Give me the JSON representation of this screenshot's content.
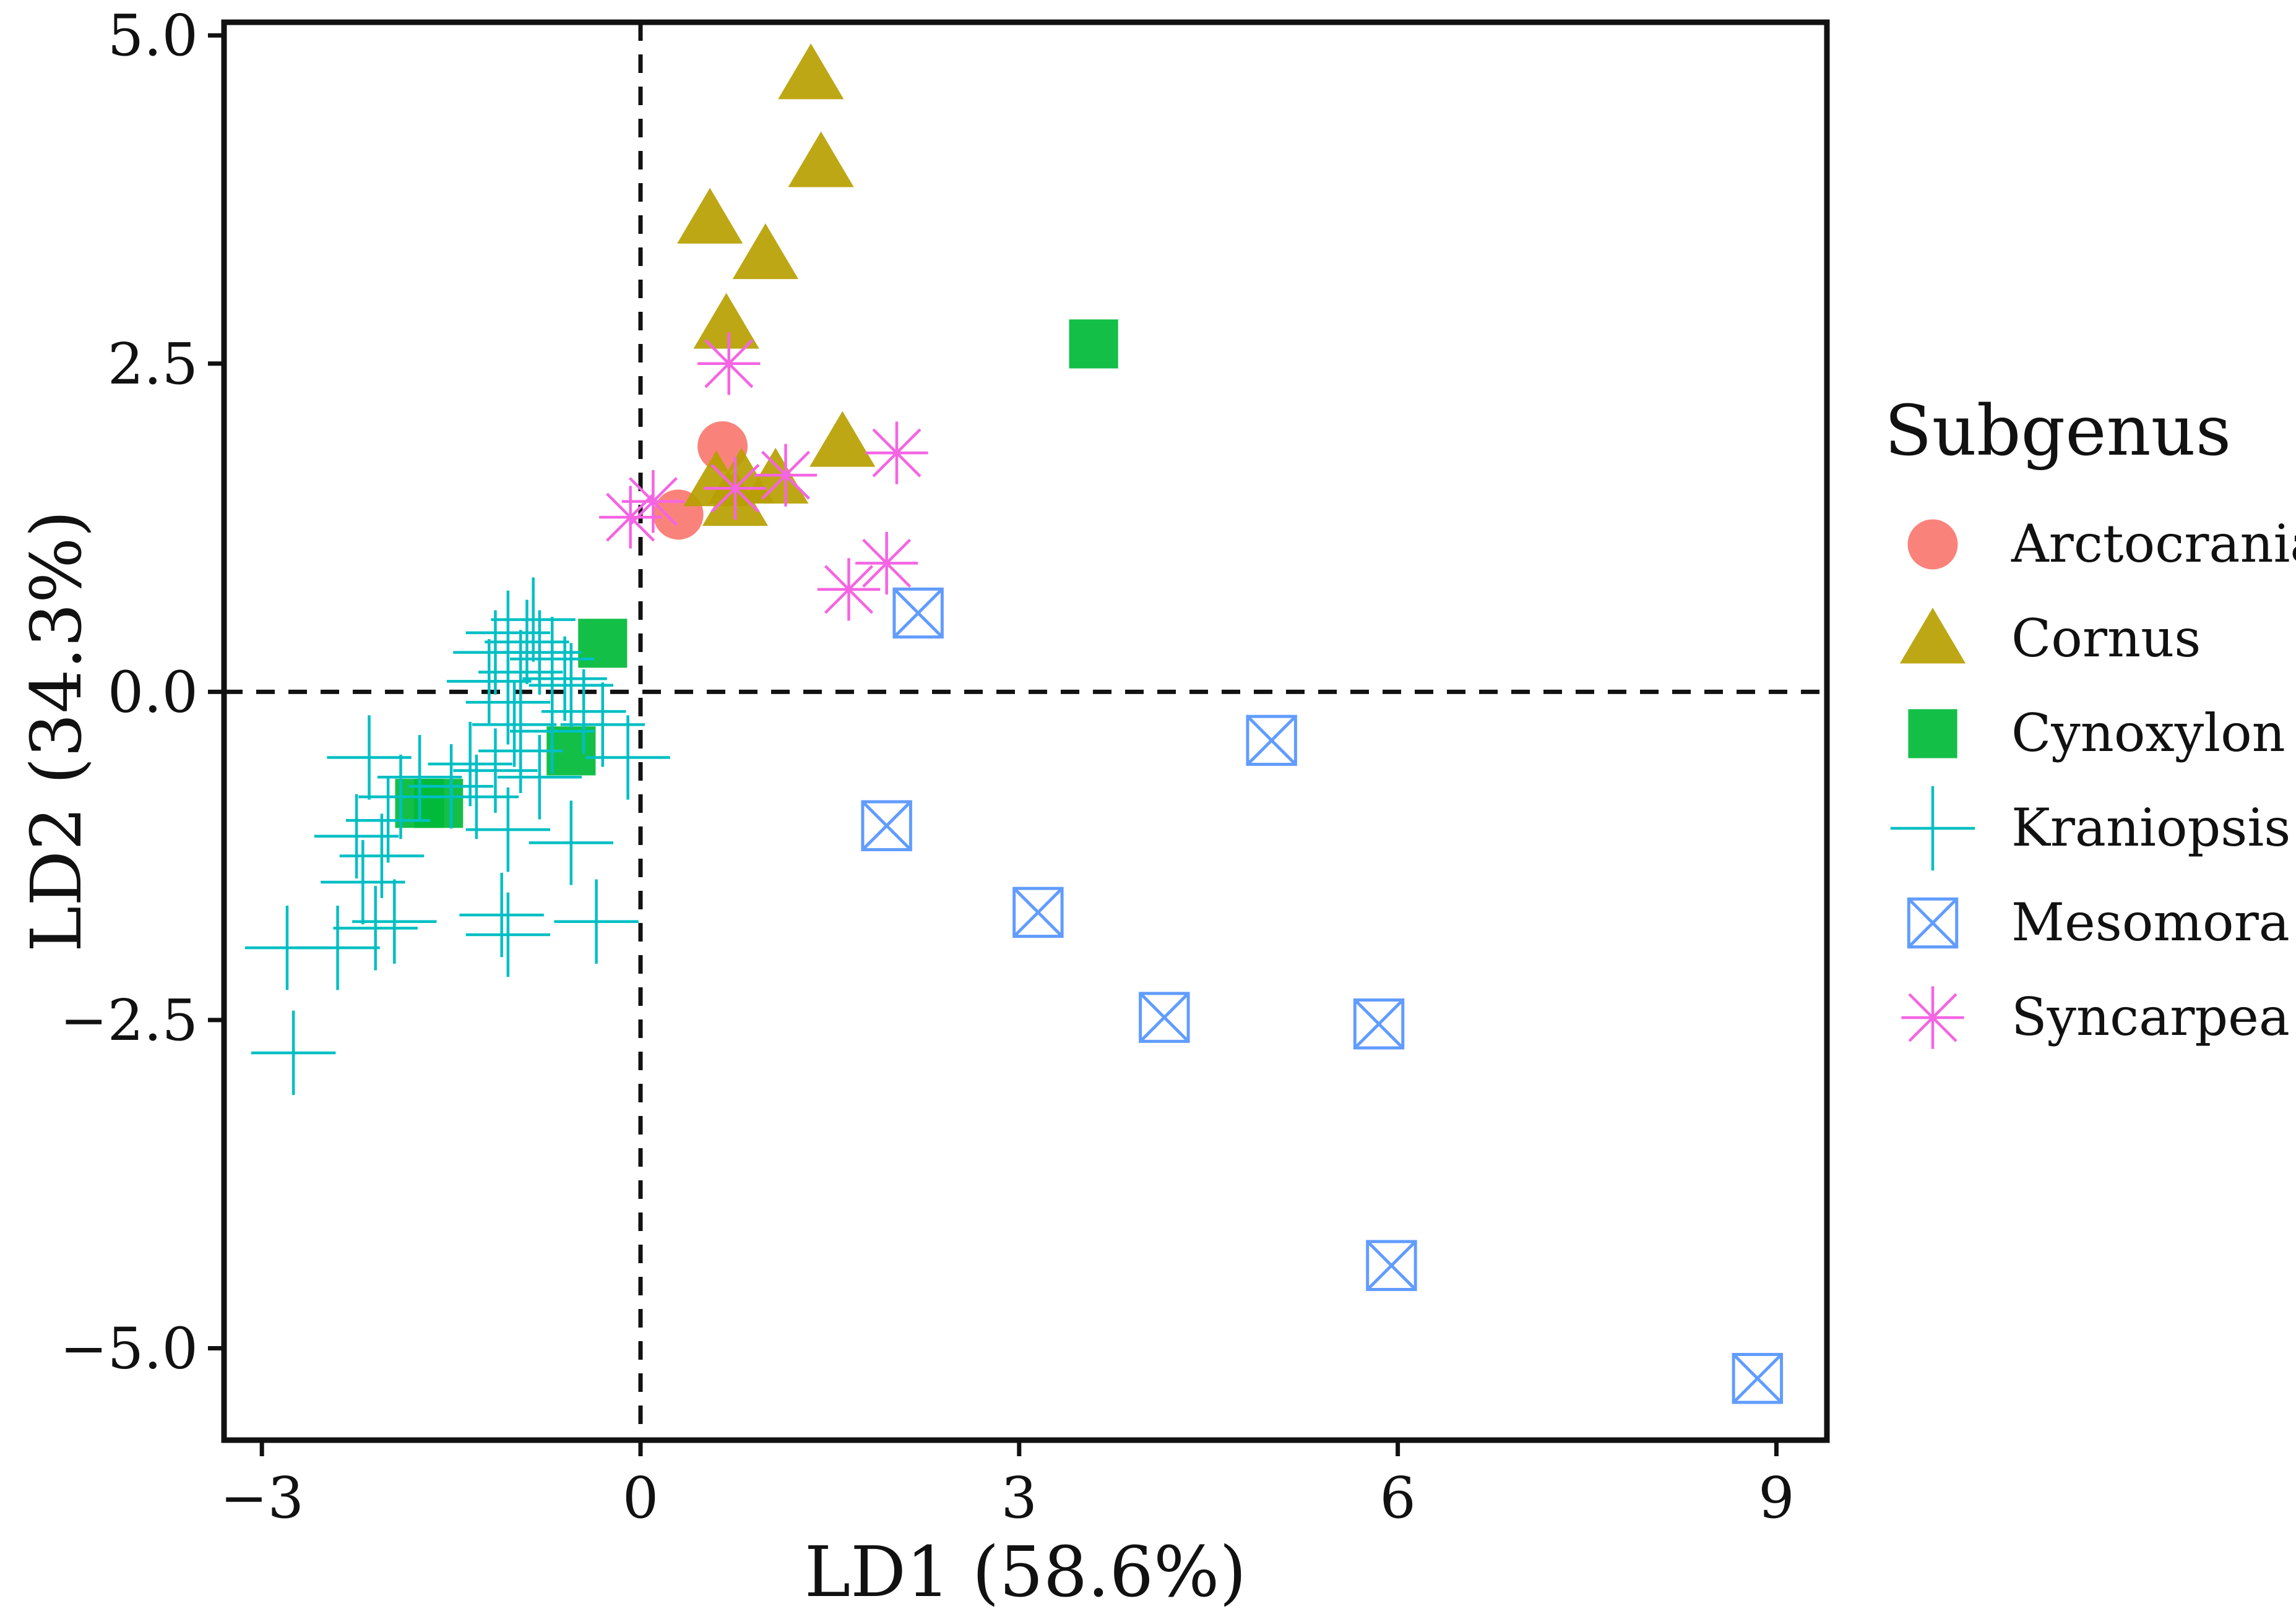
{
  "chart_data": {
    "type": "scatter",
    "title": "",
    "xlabel": "LD1 (58.6%)",
    "ylabel": "LD2 (34.3%)",
    "xlim": [
      -3.3,
      9.4
    ],
    "ylim": [
      -5.7,
      5.1
    ],
    "xticks": [
      -3,
      0,
      3,
      6,
      9
    ],
    "xtick_labels": [
      "−3",
      "0",
      "3",
      "6",
      "9"
    ],
    "yticks": [
      5.0,
      2.5,
      0.0,
      -2.5,
      -5.0
    ],
    "ytick_labels": [
      "5.0",
      "2.5",
      "0.0",
      "−2.5",
      "−5.0"
    ],
    "reference_lines": {
      "x": 0,
      "y": 0,
      "style": "dashed"
    },
    "grid": false,
    "legend": {
      "title": "Subgenus",
      "position": "right"
    },
    "series": [
      {
        "name": "Arctocrania",
        "marker": "circle",
        "color": "#F8766D",
        "points": [
          [
            0.65,
            1.87
          ],
          [
            0.3,
            1.35
          ]
        ]
      },
      {
        "name": "Cornus",
        "marker": "triangle",
        "color": "#B79F00",
        "points": [
          [
            1.35,
            4.7
          ],
          [
            1.43,
            4.03
          ],
          [
            0.55,
            3.6
          ],
          [
            0.99,
            3.33
          ],
          [
            0.68,
            2.8
          ],
          [
            1.6,
            1.9
          ],
          [
            0.6,
            1.6
          ],
          [
            0.8,
            1.62
          ],
          [
            1.07,
            1.62
          ],
          [
            0.75,
            1.45
          ]
        ]
      },
      {
        "name": "Cynoxylon",
        "marker": "square",
        "color": "#00BA38",
        "points": [
          [
            3.59,
            2.65
          ],
          [
            -0.3,
            0.37
          ],
          [
            -0.55,
            -0.45
          ],
          [
            -1.75,
            -0.85
          ],
          [
            -1.6,
            -0.85
          ]
        ]
      },
      {
        "name": "Kraniopsis",
        "marker": "plus",
        "color": "#00BFC4",
        "points": [
          [
            -1.05,
            0.45
          ],
          [
            -0.9,
            0.38
          ],
          [
            -0.8,
            0.3
          ],
          [
            -0.95,
            0.15
          ],
          [
            -1.15,
            0.3
          ],
          [
            -1.2,
            0.08
          ],
          [
            -0.85,
            0.55
          ],
          [
            -0.7,
            0.25
          ],
          [
            -0.55,
            0.05
          ],
          [
            -1.05,
            -0.08
          ],
          [
            -1.0,
            -0.25
          ],
          [
            -0.7,
            -0.3
          ],
          [
            -0.95,
            -0.45
          ],
          [
            -1.15,
            -0.6
          ],
          [
            -0.8,
            -0.65
          ],
          [
            -1.35,
            -0.55
          ],
          [
            -1.5,
            -0.72
          ],
          [
            -1.75,
            -0.65
          ],
          [
            -1.9,
            -0.8
          ],
          [
            -2.0,
            -0.98
          ],
          [
            -1.3,
            -0.8
          ],
          [
            -1.05,
            -1.05
          ],
          [
            -0.55,
            -1.15
          ],
          [
            -2.15,
            -0.5
          ],
          [
            -2.25,
            -1.1
          ],
          [
            -2.05,
            -1.25
          ],
          [
            -2.2,
            -1.45
          ],
          [
            -1.95,
            -1.75
          ],
          [
            -2.1,
            -1.8
          ],
          [
            -2.4,
            -1.95
          ],
          [
            -2.8,
            -1.95
          ],
          [
            -2.75,
            -2.75
          ],
          [
            -1.1,
            -1.7
          ],
          [
            -1.05,
            -1.85
          ],
          [
            -0.35,
            -1.75
          ],
          [
            -0.1,
            -0.5
          ],
          [
            -0.3,
            -0.25
          ],
          [
            -0.45,
            -0.15
          ],
          [
            -0.6,
            0.1
          ]
        ]
      },
      {
        "name": "Mesomora",
        "marker": "square-cross",
        "color": "#619CFF",
        "points": [
          [
            2.2,
            0.6
          ],
          [
            5.0,
            -0.37
          ],
          [
            1.95,
            -1.02
          ],
          [
            3.15,
            -1.68
          ],
          [
            4.15,
            -2.48
          ],
          [
            5.85,
            -2.53
          ],
          [
            5.95,
            -4.37
          ],
          [
            8.85,
            -5.23
          ]
        ]
      },
      {
        "name": "Syncarpea",
        "marker": "asterisk",
        "color": "#F564E3",
        "points": [
          [
            0.7,
            2.5
          ],
          [
            2.03,
            1.82
          ],
          [
            -0.08,
            1.33
          ],
          [
            0.1,
            1.45
          ],
          [
            0.75,
            1.55
          ],
          [
            1.15,
            1.65
          ],
          [
            1.95,
            0.98
          ],
          [
            1.65,
            0.78
          ]
        ]
      }
    ]
  }
}
